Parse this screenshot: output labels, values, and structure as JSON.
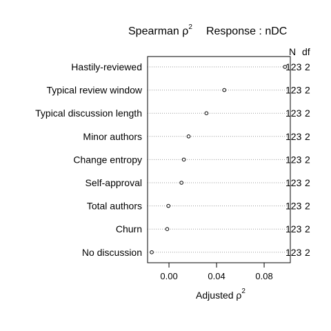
{
  "chart_data": {
    "type": "scatter",
    "title": {
      "prefix": "Spearman ρ",
      "sup": "2",
      "response": "Response : nDC"
    },
    "xlabel": {
      "text": "Adjusted ρ",
      "sup": "2"
    },
    "xlim": [
      -0.018,
      0.102
    ],
    "xticks": [
      {
        "value": 0.0,
        "label": "0.00"
      },
      {
        "value": 0.04,
        "label": "0.04"
      },
      {
        "value": 0.08,
        "label": "0.08"
      }
    ],
    "column_headers": {
      "n": "N",
      "df": "df"
    },
    "categories": [
      "Hastily-reviewed",
      "Typical review window",
      "Typical discussion length",
      "Minor authors",
      "Change entropy",
      "Self-approval",
      "Total authors",
      "Churn",
      "No discussion"
    ],
    "values": [
      0.0975,
      0.0465,
      0.0315,
      0.0165,
      0.0125,
      0.0105,
      -0.0005,
      -0.0015,
      -0.0145
    ],
    "n": [
      "123",
      "123",
      "123",
      "123",
      "123",
      "123",
      "123",
      "123",
      "123"
    ],
    "df": [
      "2",
      "2",
      "2",
      "2",
      "2",
      "2",
      "2",
      "2",
      "2"
    ],
    "grid": "dotted horizontal"
  }
}
